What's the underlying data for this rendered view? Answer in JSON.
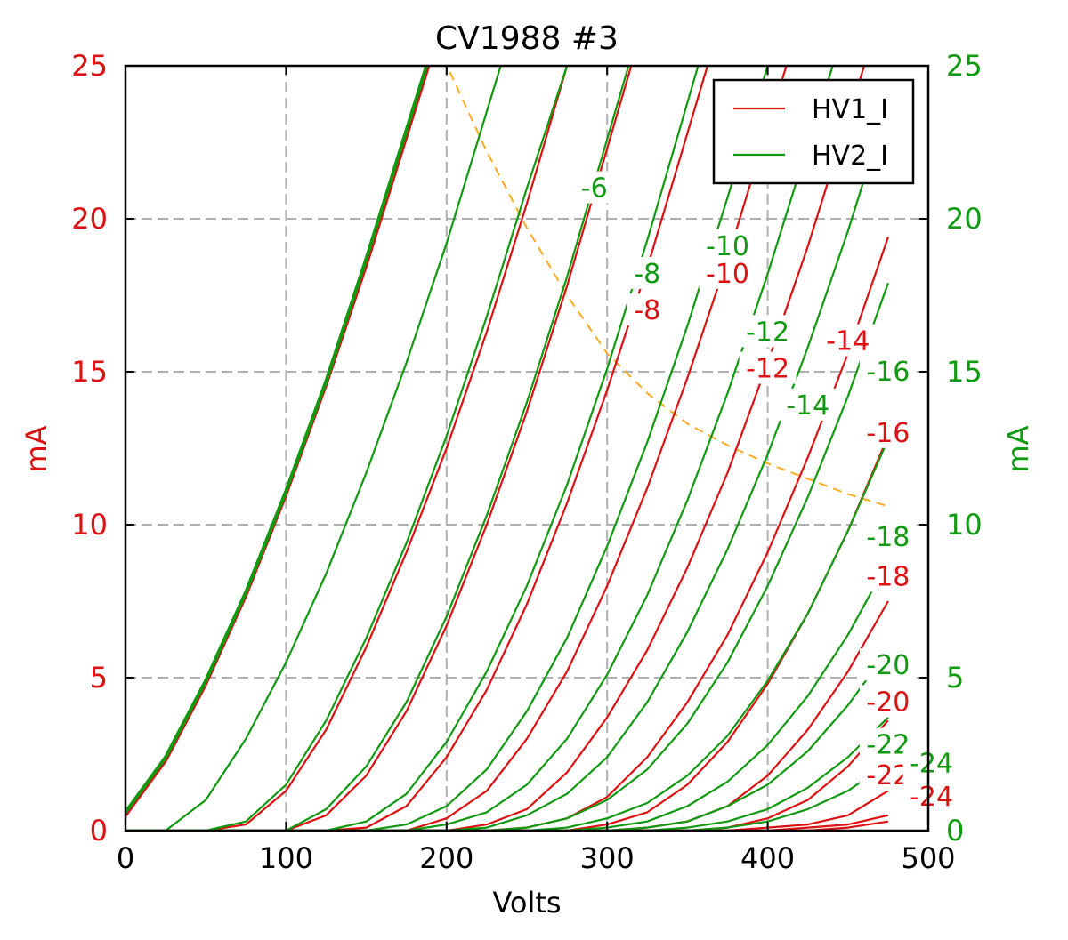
{
  "chart_data": {
    "type": "line",
    "title": "CV1988 #3",
    "xlabel": "Volts",
    "ylabel_left": "mA",
    "ylabel_right": "mA",
    "xlim": [
      0,
      500
    ],
    "ylim": [
      0,
      25
    ],
    "x_ticks": [
      0,
      100,
      200,
      300,
      400,
      500
    ],
    "y_ticks": [
      0,
      5,
      10,
      15,
      20,
      25
    ],
    "grid": true,
    "legend_position": "top-right",
    "legend": [
      {
        "name": "HV1_I",
        "color": "#dd1111"
      },
      {
        "name": "HV2_I",
        "color": "#119911"
      }
    ],
    "colors": {
      "hv1": "#dd1111",
      "hv2": "#119911",
      "load_line": "#ffaa22",
      "grid": "#b0b0b0"
    },
    "x": [
      0,
      25,
      50,
      75,
      100,
      125,
      150,
      175,
      200,
      225,
      250,
      275,
      300,
      325,
      350,
      375,
      400,
      425,
      450,
      475
    ],
    "series": [
      {
        "group": "HV1_I",
        "grid_v": "0",
        "values": [
          0.5,
          2.3,
          4.8,
          7.7,
          11.0,
          14.6,
          18.5,
          22.7,
          null,
          null,
          null,
          null,
          null,
          null,
          null,
          null,
          null,
          null,
          null,
          null
        ]
      },
      {
        "group": "HV1_I",
        "grid_v": "-2",
        "values": [
          0,
          0,
          0,
          0.2,
          1.3,
          3.3,
          6.0,
          9.1,
          12.5,
          16.3,
          20.5,
          25.0,
          null,
          null,
          null,
          null,
          null,
          null,
          null,
          null
        ]
      },
      {
        "group": "HV1_I",
        "grid_v": "-4",
        "values": [
          0,
          0,
          0,
          0,
          0,
          0.5,
          1.8,
          3.9,
          6.7,
          10.0,
          13.7,
          17.8,
          22.3,
          null,
          null,
          null,
          null,
          null,
          null,
          null
        ]
      },
      {
        "group": "HV1_I",
        "grid_v": "-6",
        "values": [
          0,
          0,
          0,
          0,
          0,
          0,
          0.1,
          0.8,
          2.4,
          4.6,
          7.4,
          10.7,
          14.4,
          18.4,
          22.8,
          null,
          null,
          null,
          null,
          null
        ]
      },
      {
        "group": "HV1_I",
        "grid_v": "-8",
        "values": [
          0,
          0,
          0,
          0,
          0,
          0,
          0,
          0,
          0.4,
          1.3,
          3.0,
          5.2,
          8.0,
          11.2,
          14.8,
          18.7,
          23.0,
          null,
          null,
          null
        ]
      },
      {
        "group": "HV1_I",
        "grid_v": "-10",
        "values": [
          0,
          0,
          0,
          0,
          0,
          0,
          0,
          0,
          0,
          0.2,
          0.7,
          1.9,
          3.7,
          5.9,
          8.6,
          11.7,
          15.3,
          19.1,
          23.3,
          null
        ]
      },
      {
        "group": "HV1_I",
        "grid_v": "-12",
        "values": [
          0,
          0,
          0,
          0,
          0,
          0,
          0,
          0,
          0,
          0,
          0.1,
          0.4,
          1.1,
          2.4,
          4.2,
          6.4,
          9.1,
          12.2,
          15.6,
          19.4
        ]
      },
      {
        "group": "HV1_I",
        "grid_v": "-14",
        "values": [
          0,
          0,
          0,
          0,
          0,
          0,
          0,
          0,
          0,
          0,
          0,
          0,
          0.2,
          0.6,
          1.5,
          2.9,
          4.8,
          7.1,
          9.8,
          12.9
        ]
      },
      {
        "group": "HV1_I",
        "grid_v": "-16",
        "values": [
          0,
          0,
          0,
          0,
          0,
          0,
          0,
          0,
          0,
          0,
          0,
          0,
          0,
          0.1,
          0.3,
          0.8,
          1.8,
          3.3,
          5.2,
          7.5
        ]
      },
      {
        "group": "HV1_I",
        "grid_v": "-18",
        "values": [
          0,
          0,
          0,
          0,
          0,
          0,
          0,
          0,
          0,
          0,
          0,
          0,
          0,
          0,
          0,
          0.1,
          0.4,
          1.0,
          2.1,
          3.6
        ]
      },
      {
        "group": "HV1_I",
        "grid_v": "-20",
        "values": [
          0,
          0,
          0,
          0,
          0,
          0,
          0,
          0,
          0,
          0,
          0,
          0,
          0,
          0,
          0,
          0,
          0.1,
          0.2,
          0.5,
          1.3
        ]
      },
      {
        "group": "HV1_I",
        "grid_v": "-22",
        "values": [
          0,
          0,
          0,
          0,
          0,
          0,
          0,
          0,
          0,
          0,
          0,
          0,
          0,
          0,
          0,
          0,
          0,
          0.1,
          0.2,
          0.5
        ]
      },
      {
        "group": "HV1_I",
        "grid_v": "-24",
        "values": [
          0,
          0,
          0,
          0,
          0,
          0,
          0,
          0,
          0,
          0,
          0,
          0,
          0,
          0,
          0,
          0,
          0,
          0,
          0.1,
          0.3
        ]
      },
      {
        "group": "HV2_I",
        "grid_v": "0",
        "values": [
          0.6,
          2.4,
          4.9,
          7.8,
          11.1,
          14.7,
          18.7,
          22.9,
          null,
          null,
          null,
          null,
          null,
          null,
          null,
          null,
          null,
          null,
          null,
          null
        ]
      },
      {
        "group": "HV2_I",
        "grid_v": "-1",
        "values": [
          0,
          0,
          1.0,
          3.0,
          5.5,
          8.4,
          11.7,
          15.3,
          19.2,
          23.5,
          null,
          null,
          null,
          null,
          null,
          null,
          null,
          null,
          null,
          null
        ]
      },
      {
        "group": "HV2_I",
        "grid_v": "-2",
        "values": [
          0,
          0,
          0,
          0.3,
          1.5,
          3.6,
          6.3,
          9.4,
          12.9,
          16.8,
          21.0,
          25.0,
          null,
          null,
          null,
          null,
          null,
          null,
          null,
          null
        ]
      },
      {
        "group": "HV2_I",
        "grid_v": "-4",
        "values": [
          0,
          0,
          0,
          0,
          0,
          0.7,
          2.1,
          4.2,
          7.0,
          10.3,
          14.0,
          18.1,
          22.6,
          null,
          null,
          null,
          null,
          null,
          null,
          null
        ]
      },
      {
        "group": "HV2_I",
        "grid_v": "-6",
        "values": [
          0,
          0,
          0,
          0,
          0,
          0,
          0.3,
          1.2,
          2.9,
          5.2,
          8.0,
          11.3,
          15.1,
          19.3,
          23.8,
          null,
          null,
          null,
          null,
          null
        ]
      },
      {
        "group": "HV2_I",
        "grid_v": "-8",
        "values": [
          0,
          0,
          0,
          0,
          0,
          0,
          0,
          0.2,
          0.8,
          2.0,
          3.9,
          6.3,
          9.3,
          12.7,
          16.5,
          20.7,
          25.0,
          null,
          null,
          null
        ]
      },
      {
        "group": "HV2_I",
        "grid_v": "-10",
        "values": [
          0,
          0,
          0,
          0,
          0,
          0,
          0,
          0,
          0.2,
          0.6,
          1.5,
          3.0,
          5.1,
          7.7,
          10.8,
          14.3,
          18.2,
          22.4,
          null,
          null
        ]
      },
      {
        "group": "HV2_I",
        "grid_v": "-12",
        "values": [
          0,
          0,
          0,
          0,
          0,
          0,
          0,
          0,
          0,
          0.1,
          0.5,
          1.2,
          2.4,
          4.2,
          6.5,
          9.2,
          12.3,
          15.8,
          19.6,
          23.8
        ]
      },
      {
        "group": "HV2_I",
        "grid_v": "-14",
        "values": [
          0,
          0,
          0,
          0,
          0,
          0,
          0,
          0,
          0,
          0,
          0.1,
          0.4,
          1.0,
          2.0,
          3.5,
          5.5,
          8.0,
          10.9,
          14.2,
          17.9
        ]
      },
      {
        "group": "HV2_I",
        "grid_v": "-16",
        "values": [
          0,
          0,
          0,
          0,
          0,
          0,
          0,
          0,
          0,
          0,
          0,
          0.1,
          0.4,
          0.9,
          1.8,
          3.1,
          4.9,
          7.1,
          9.8,
          12.8
        ]
      },
      {
        "group": "HV2_I",
        "grid_v": "-18",
        "values": [
          0,
          0,
          0,
          0,
          0,
          0,
          0,
          0,
          0,
          0,
          0,
          0,
          0.1,
          0.3,
          0.8,
          1.6,
          2.8,
          4.4,
          6.4,
          8.8
        ]
      },
      {
        "group": "HV2_I",
        "grid_v": "-20",
        "values": [
          0,
          0,
          0,
          0,
          0,
          0,
          0,
          0,
          0,
          0,
          0,
          0,
          0,
          0.1,
          0.3,
          0.8,
          1.5,
          2.6,
          4.1,
          5.9
        ]
      },
      {
        "group": "HV2_I",
        "grid_v": "-22",
        "values": [
          0,
          0,
          0,
          0,
          0,
          0,
          0,
          0,
          0,
          0,
          0,
          0,
          0,
          0,
          0.1,
          0.3,
          0.7,
          1.4,
          2.4,
          3.7
        ]
      },
      {
        "group": "HV2_I",
        "grid_v": "-24",
        "values": [
          0,
          0,
          0,
          0,
          0,
          0,
          0,
          0,
          0,
          0,
          0,
          0,
          0,
          0,
          0,
          0.1,
          0.3,
          0.7,
          1.3,
          2.2
        ]
      }
    ],
    "load_line": {
      "x": [
        202,
        225,
        250,
        275,
        300,
        325,
        350,
        375,
        400,
        425,
        450,
        475
      ],
      "y": [
        24.8,
        22.2,
        19.7,
        17.5,
        15.6,
        14.3,
        13.3,
        12.6,
        12.0,
        11.5,
        11.0,
        10.6
      ]
    },
    "curve_labels": [
      {
        "text": "-6",
        "group": "HV2_I",
        "x": 292,
        "y": 21.0
      },
      {
        "text": "-8",
        "group": "HV2_I",
        "x": 325,
        "y": 18.2
      },
      {
        "text": "-8",
        "group": "HV1_I",
        "x": 325,
        "y": 17.0
      },
      {
        "text": "-10",
        "group": "HV2_I",
        "x": 375,
        "y": 19.1
      },
      {
        "text": "-10",
        "group": "HV1_I",
        "x": 375,
        "y": 18.2
      },
      {
        "text": "-12",
        "group": "HV2_I",
        "x": 400,
        "y": 16.3
      },
      {
        "text": "-12",
        "group": "HV1_I",
        "x": 400,
        "y": 15.1
      },
      {
        "text": "-14",
        "group": "HV1_I",
        "x": 450,
        "y": 16.0
      },
      {
        "text": "-14",
        "group": "HV2_I",
        "x": 425,
        "y": 13.9
      },
      {
        "text": "-16",
        "group": "HV2_I",
        "x": 475,
        "y": 15.0
      },
      {
        "text": "-16",
        "group": "HV1_I",
        "x": 475,
        "y": 13.0
      },
      {
        "text": "-18",
        "group": "HV2_I",
        "x": 475,
        "y": 9.6
      },
      {
        "text": "-18",
        "group": "HV1_I",
        "x": 475,
        "y": 8.3
      },
      {
        "text": "-20",
        "group": "HV2_I",
        "x": 475,
        "y": 5.4
      },
      {
        "text": "-20",
        "group": "HV1_I",
        "x": 475,
        "y": 4.2
      },
      {
        "text": "-22",
        "group": "HV2_I",
        "x": 475,
        "y": 2.8
      },
      {
        "text": "-22",
        "group": "HV1_I",
        "x": 475,
        "y": 1.8
      },
      {
        "text": "-24",
        "group": "HV2_I",
        "x": 502,
        "y": 2.2
      },
      {
        "text": "-24",
        "group": "HV1_I",
        "x": 502,
        "y": 1.1
      }
    ]
  }
}
